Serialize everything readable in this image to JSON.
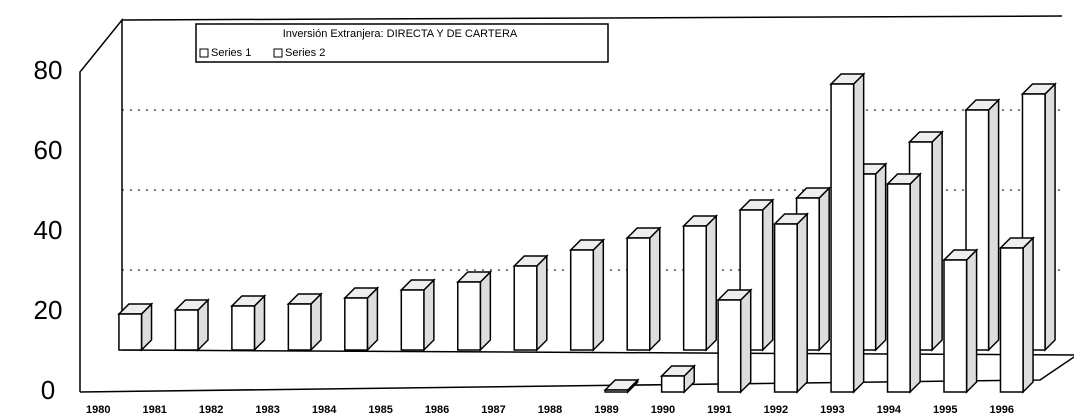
{
  "chart_data": {
    "type": "bar3d",
    "title": "Inversión Extranjera: DIRECTA Y DE CARTERA",
    "categories": [
      "1980",
      "1981",
      "1982",
      "1983",
      "1984",
      "1985",
      "1986",
      "1987",
      "1988",
      "1989",
      "1990",
      "1991",
      "1992",
      "1993",
      "1994",
      "1995",
      "1996"
    ],
    "series": [
      {
        "name": "Series 1",
        "color": "#ffffff",
        "values": [
          null,
          null,
          null,
          null,
          null,
          null,
          null,
          null,
          null,
          0.5,
          4,
          23,
          42,
          77,
          52,
          33,
          36
        ]
      },
      {
        "name": "Series 2",
        "color": "#ffffff",
        "values": [
          9,
          10,
          11,
          11.5,
          13,
          15,
          17,
          21,
          25,
          28,
          31,
          35,
          38,
          44,
          52,
          60,
          64
        ]
      }
    ],
    "ylim": [
      0,
      80
    ],
    "yticks": [
      0,
      20,
      40,
      60,
      80
    ],
    "grid": true
  }
}
